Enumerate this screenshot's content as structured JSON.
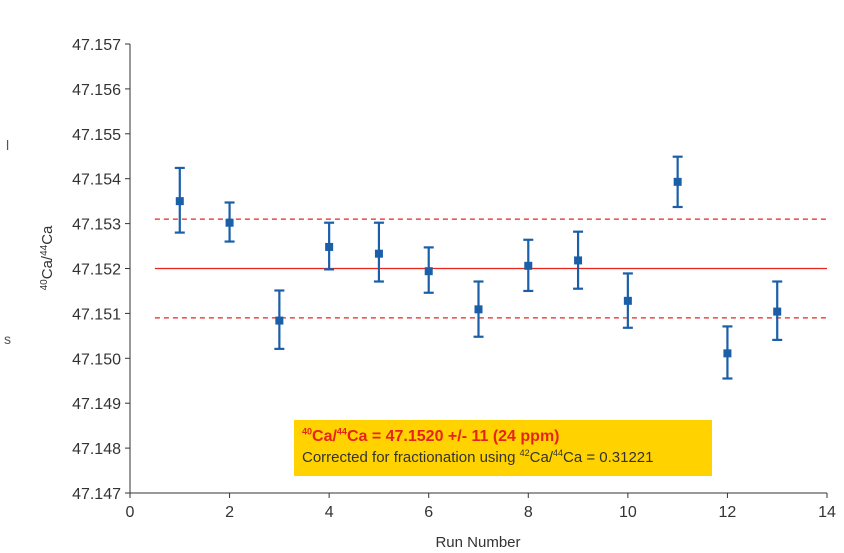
{
  "chart_data": {
    "type": "scatter",
    "xlabel": "Run  Number",
    "ylabel": {
      "sup1": "40",
      "base1": "Ca/",
      "sup2": "44",
      "base2": "Ca"
    },
    "xlim": [
      0,
      14
    ],
    "ylim": [
      47.147,
      47.157
    ],
    "x_ticks": [
      "0",
      "2",
      "4",
      "6",
      "8",
      "10",
      "12",
      "14"
    ],
    "y_ticks": [
      "47.157",
      "47.156",
      "47.155",
      "47.154",
      "47.153",
      "47.152",
      "47.151",
      "47.150",
      "47.149",
      "47.148",
      "47.147"
    ],
    "grid": false,
    "points": [
      {
        "x": 1,
        "y": 47.1535,
        "err_low": 47.1528,
        "err_high": 47.15424
      },
      {
        "x": 2,
        "y": 47.15302,
        "err_low": 47.1526,
        "err_high": 47.15347
      },
      {
        "x": 3,
        "y": 47.15084,
        "err_low": 47.15021,
        "err_high": 47.15151
      },
      {
        "x": 4,
        "y": 47.15248,
        "err_low": 47.15198,
        "err_high": 47.15302
      },
      {
        "x": 5,
        "y": 47.15233,
        "err_low": 47.15171,
        "err_high": 47.15302
      },
      {
        "x": 6,
        "y": 47.15194,
        "err_low": 47.15146,
        "err_high": 47.15247
      },
      {
        "x": 7,
        "y": 47.15109,
        "err_low": 47.15048,
        "err_high": 47.15171
      },
      {
        "x": 8,
        "y": 47.15206,
        "err_low": 47.1515,
        "err_high": 47.15264
      },
      {
        "x": 9,
        "y": 47.15218,
        "err_low": 47.15155,
        "err_high": 47.15282
      },
      {
        "x": 10,
        "y": 47.15128,
        "err_low": 47.15068,
        "err_high": 47.15189
      },
      {
        "x": 11,
        "y": 47.15393,
        "err_low": 47.15337,
        "err_high": 47.15449
      },
      {
        "x": 12,
        "y": 47.15011,
        "err_low": 47.14955,
        "err_high": 47.15071
      },
      {
        "x": 13,
        "y": 47.15104,
        "err_low": 47.15041,
        "err_high": 47.15171
      }
    ],
    "mean_line": {
      "y": 47.152,
      "color": "#e8231c",
      "style": "solid"
    },
    "band_lines": {
      "y": [
        47.1531,
        47.1509
      ],
      "color": "#e8231c",
      "style": "dashed"
    },
    "marker_color": "#1a5fa8",
    "annotation": {
      "line1": {
        "sup1": "40",
        "base1": "Ca/",
        "sup2": "44",
        "base2": "Ca = 47.1520 +/- 11 (24 ppm)"
      },
      "line2": {
        "pre": "Corrected for fractionation using ",
        "sup1": "42",
        "base1": "Ca/",
        "sup2": "44",
        "base2": "Ca = 0.31221"
      },
      "background": "#ffd200"
    }
  },
  "margin_fragments": [
    "l",
    "s"
  ]
}
